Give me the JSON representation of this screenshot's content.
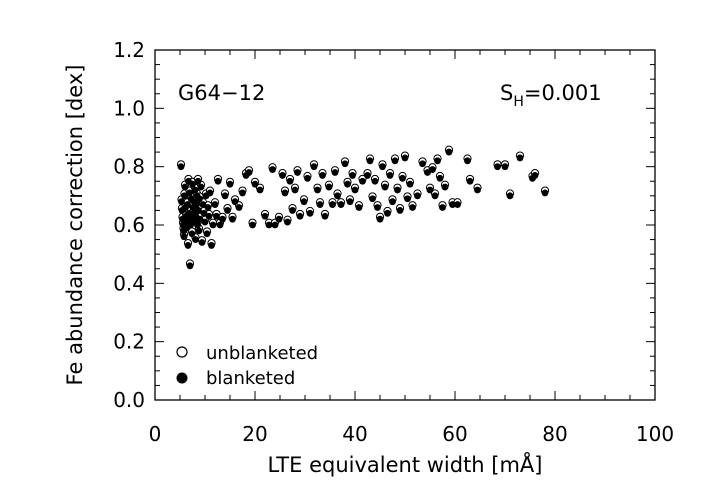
{
  "chart_data": {
    "type": "scatter",
    "title": "",
    "xlabel": "LTE equivalent width [mÅ]",
    "ylabel": "Fe abundance correction [dex]",
    "xlim": [
      0,
      100
    ],
    "ylim": [
      0.0,
      1.2
    ],
    "x_ticks": [
      "0",
      "20",
      "40",
      "60",
      "80",
      "100"
    ],
    "y_ticks": [
      "0.0",
      "0.2",
      "0.4",
      "0.6",
      "0.8",
      "1.0",
      "1.2"
    ],
    "annotations": {
      "star": "G64−12",
      "sh_prefix": "S",
      "sh_sub": "H",
      "sh_value": "=0.001"
    },
    "legend": {
      "placement": "bottom-left",
      "entries": [
        {
          "label": "unblanketed",
          "marker": "open-circle"
        },
        {
          "label": "blanketed",
          "marker": "filled-circle"
        }
      ]
    },
    "series": [
      {
        "name": "blanketed",
        "marker": "filled-circle",
        "points": [
          [
            5.2,
            0.8
          ],
          [
            5.3,
            0.68
          ],
          [
            5.4,
            0.65
          ],
          [
            5.5,
            0.62
          ],
          [
            5.6,
            0.6
          ],
          [
            5.7,
            0.58
          ],
          [
            5.8,
            0.56
          ],
          [
            5.9,
            0.7
          ],
          [
            6.0,
            0.73
          ],
          [
            6.1,
            0.66
          ],
          [
            6.2,
            0.63
          ],
          [
            6.3,
            0.61
          ],
          [
            6.4,
            0.59
          ],
          [
            6.5,
            0.67
          ],
          [
            6.6,
            0.53
          ],
          [
            6.7,
            0.75
          ],
          [
            6.8,
            0.64
          ],
          [
            6.9,
            0.71
          ],
          [
            7.0,
            0.46
          ],
          [
            7.1,
            0.6
          ],
          [
            7.2,
            0.69
          ],
          [
            7.3,
            0.62
          ],
          [
            7.4,
            0.57
          ],
          [
            7.5,
            0.74
          ],
          [
            7.6,
            0.66
          ],
          [
            7.7,
            0.64
          ],
          [
            7.8,
            0.68
          ],
          [
            7.9,
            0.61
          ],
          [
            8.0,
            0.72
          ],
          [
            8.1,
            0.55
          ],
          [
            8.2,
            0.63
          ],
          [
            8.3,
            0.67
          ],
          [
            8.4,
            0.7
          ],
          [
            8.5,
            0.6
          ],
          [
            8.6,
            0.75
          ],
          [
            8.7,
            0.65
          ],
          [
            8.8,
            0.58
          ],
          [
            8.9,
            0.69
          ],
          [
            9.0,
            0.62
          ],
          [
            9.2,
            0.73
          ],
          [
            9.4,
            0.54
          ],
          [
            9.6,
            0.67
          ],
          [
            9.8,
            0.64
          ],
          [
            10.0,
            0.61
          ],
          [
            10.2,
            0.7
          ],
          [
            10.4,
            0.57
          ],
          [
            10.6,
            0.66
          ],
          [
            10.8,
            0.63
          ],
          [
            11.0,
            0.71
          ],
          [
            11.3,
            0.53
          ],
          [
            11.6,
            0.6
          ],
          [
            12.0,
            0.67
          ],
          [
            12.3,
            0.63
          ],
          [
            12.6,
            0.75
          ],
          [
            13.0,
            0.6
          ],
          [
            13.5,
            0.62
          ],
          [
            14.0,
            0.7
          ],
          [
            14.5,
            0.65
          ],
          [
            15.0,
            0.74
          ],
          [
            15.5,
            0.62
          ],
          [
            16.0,
            0.68
          ],
          [
            16.8,
            0.66
          ],
          [
            17.5,
            0.71
          ],
          [
            18.2,
            0.77
          ],
          [
            18.8,
            0.78
          ],
          [
            19.5,
            0.6
          ],
          [
            20.0,
            0.74
          ],
          [
            21.0,
            0.72
          ],
          [
            22.0,
            0.63
          ],
          [
            22.8,
            0.6
          ],
          [
            23.5,
            0.79
          ],
          [
            24.0,
            0.6
          ],
          [
            24.8,
            0.62
          ],
          [
            25.5,
            0.77
          ],
          [
            26.0,
            0.71
          ],
          [
            26.5,
            0.61
          ],
          [
            27.0,
            0.75
          ],
          [
            27.5,
            0.65
          ],
          [
            28.0,
            0.72
          ],
          [
            28.5,
            0.78
          ],
          [
            29.0,
            0.63
          ],
          [
            29.8,
            0.68
          ],
          [
            30.5,
            0.76
          ],
          [
            31.0,
            0.64
          ],
          [
            31.8,
            0.8
          ],
          [
            32.5,
            0.72
          ],
          [
            33.0,
            0.67
          ],
          [
            33.5,
            0.77
          ],
          [
            34.0,
            0.63
          ],
          [
            34.8,
            0.73
          ],
          [
            35.5,
            0.67
          ],
          [
            36.0,
            0.78
          ],
          [
            36.5,
            0.7
          ],
          [
            37.2,
            0.67
          ],
          [
            38.0,
            0.81
          ],
          [
            38.5,
            0.74
          ],
          [
            39.0,
            0.68
          ],
          [
            39.5,
            0.77
          ],
          [
            40.0,
            0.72
          ],
          [
            40.8,
            0.66
          ],
          [
            41.5,
            0.75
          ],
          [
            42.5,
            0.77
          ],
          [
            43.0,
            0.82
          ],
          [
            43.5,
            0.69
          ],
          [
            44.0,
            0.75
          ],
          [
            44.5,
            0.66
          ],
          [
            45.0,
            0.62
          ],
          [
            45.5,
            0.8
          ],
          [
            46.0,
            0.73
          ],
          [
            46.5,
            0.64
          ],
          [
            47.0,
            0.77
          ],
          [
            47.5,
            0.68
          ],
          [
            48.0,
            0.82
          ],
          [
            48.5,
            0.72
          ],
          [
            49.0,
            0.65
          ],
          [
            49.5,
            0.76
          ],
          [
            50.0,
            0.83
          ],
          [
            50.5,
            0.69
          ],
          [
            51.0,
            0.74
          ],
          [
            51.5,
            0.66
          ],
          [
            52.5,
            0.7
          ],
          [
            53.5,
            0.81
          ],
          [
            54.5,
            0.78
          ],
          [
            55.0,
            0.72
          ],
          [
            55.5,
            0.79
          ],
          [
            56.0,
            0.7
          ],
          [
            56.5,
            0.82
          ],
          [
            57.0,
            0.76
          ],
          [
            57.5,
            0.66
          ],
          [
            58.0,
            0.73
          ],
          [
            58.8,
            0.85
          ],
          [
            59.5,
            0.67
          ],
          [
            60.5,
            0.67
          ],
          [
            62.5,
            0.82
          ],
          [
            63.0,
            0.75
          ],
          [
            64.5,
            0.72
          ],
          [
            68.5,
            0.8
          ],
          [
            70.0,
            0.8
          ],
          [
            71.0,
            0.7
          ],
          [
            73.0,
            0.83
          ],
          [
            75.5,
            0.76
          ],
          [
            76.0,
            0.77
          ],
          [
            78.0,
            0.71
          ]
        ]
      },
      {
        "name": "unblanketed",
        "marker": "open-circle",
        "offset_dex": 0.008
      }
    ]
  }
}
